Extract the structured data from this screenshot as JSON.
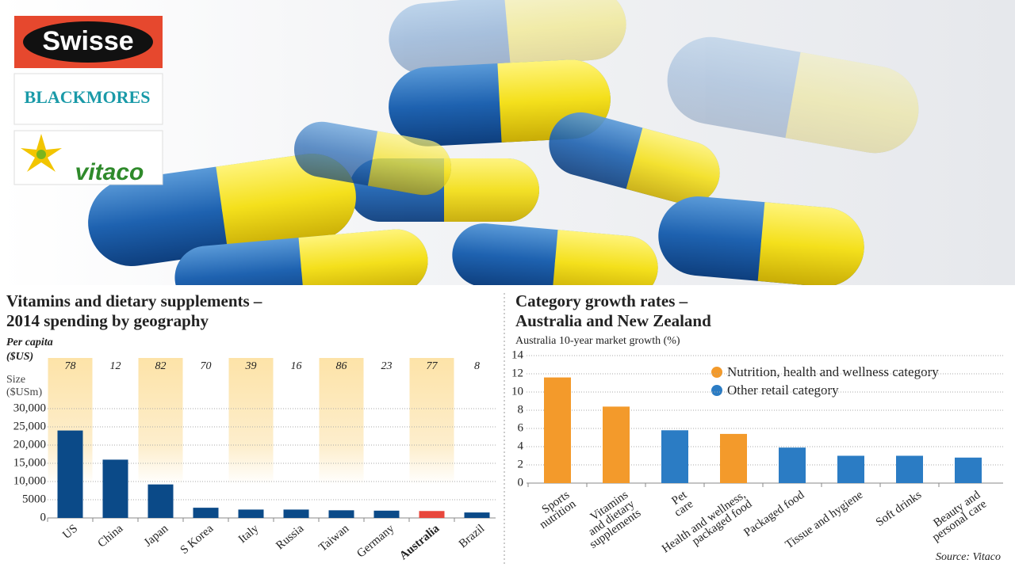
{
  "logos": [
    "Swisse",
    "BLACKMORES",
    "vitaco"
  ],
  "source": "Source: Vitaco",
  "chart_data": [
    {
      "type": "bar",
      "title": [
        "Vitamins and dietary supplements –",
        "2014 spending by geography"
      ],
      "per_capita_label": [
        "Per capita",
        "($US)"
      ],
      "per_capita": [
        78,
        12,
        82,
        70,
        39,
        16,
        86,
        23,
        77,
        8
      ],
      "ylabel": [
        "Size",
        "($USm)"
      ],
      "categories": [
        "US",
        "China",
        "Japan",
        "S Korea",
        "Italy",
        "Russia",
        "Taiwan",
        "Germany",
        "Australia",
        "Brazil"
      ],
      "values": [
        24000,
        16000,
        9200,
        2800,
        2300,
        2300,
        2100,
        2000,
        1900,
        1500
      ],
      "colors": [
        "#0b4a88",
        "#0b4a88",
        "#0b4a88",
        "#0b4a88",
        "#0b4a88",
        "#0b4a88",
        "#0b4a88",
        "#0b4a88",
        "#e8473c",
        "#0b4a88"
      ],
      "ylim": [
        0,
        30000
      ],
      "yticks": [
        0,
        5000,
        {
          "value": 10000,
          "label": "10,000"
        },
        {
          "value": 15000,
          "label": "15,000"
        },
        {
          "value": 20000,
          "label": "20,000"
        },
        {
          "value": 25000,
          "label": "25,000"
        },
        {
          "value": 30000,
          "label": "30,000"
        }
      ],
      "grid": true
    },
    {
      "type": "bar",
      "title": [
        "Category growth rates –",
        "Australia and New Zealand"
      ],
      "ylabel": "Australia 10-year market growth (%)",
      "categories": [
        [
          "Sports",
          "nutrition"
        ],
        [
          "Vitamins",
          "and dietary",
          "supplements"
        ],
        [
          "Pet",
          "care"
        ],
        [
          "Health and wellness,",
          "packaged food"
        ],
        [
          "Packaged food"
        ],
        [
          "Tissue and hygiene"
        ],
        [
          "Soft drinks"
        ],
        [
          "Beauty and",
          "personal care"
        ]
      ],
      "values": [
        11.6,
        8.4,
        5.8,
        5.4,
        3.9,
        3.0,
        3.0,
        2.8
      ],
      "colors": [
        "#f39a2b",
        "#f39a2b",
        "#2b7cc4",
        "#f39a2b",
        "#2b7cc4",
        "#2b7cc4",
        "#2b7cc4",
        "#2b7cc4"
      ],
      "legend": [
        {
          "name": "Nutrition, health and wellness category",
          "color": "#f39a2b"
        },
        {
          "name": "Other retail category",
          "color": "#2b7cc4"
        }
      ],
      "ylim": [
        0,
        14
      ],
      "yticks": [
        0,
        2,
        4,
        6,
        8,
        10,
        12,
        14
      ],
      "grid": true
    }
  ]
}
